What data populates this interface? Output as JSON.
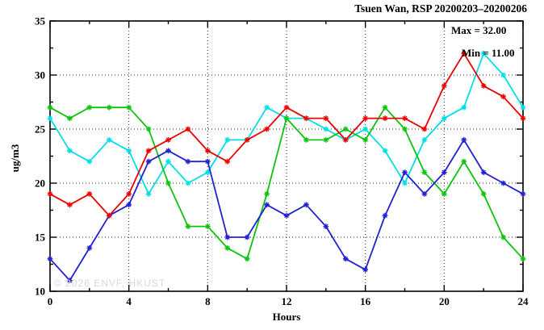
{
  "title": "Tsuen Wan, RSP 20200203–20200206",
  "annotations": {
    "max_label": "Max = 32.00",
    "min_label": "Min = 11.00"
  },
  "watermark": "© 2026 ENVF, HKUST",
  "chart_data": {
    "type": "line",
    "title": "Tsuen Wan, RSP 20200203–20200206",
    "xlabel": "Hours",
    "ylabel": "ug/m3",
    "xlim": [
      0,
      24
    ],
    "ylim": [
      10,
      35
    ],
    "x_major_ticks": [
      0,
      4,
      8,
      12,
      16,
      20,
      24
    ],
    "x_minor_step": 2,
    "y_major_ticks": [
      10,
      15,
      20,
      25,
      30,
      35
    ],
    "y_minor_step": 2.5,
    "grid_x": [
      4,
      8,
      12,
      16,
      20
    ],
    "grid_y": [
      15,
      20,
      25,
      30
    ],
    "grid_on": true,
    "legend_position": "none",
    "max_value": 32.0,
    "min_value": 11.0,
    "x": [
      0,
      1,
      2,
      3,
      4,
      5,
      6,
      7,
      8,
      9,
      10,
      11,
      12,
      13,
      14,
      15,
      16,
      17,
      18,
      19,
      20,
      21,
      22,
      23,
      24
    ],
    "series": [
      {
        "name": "cyan-line",
        "color": "#00dfe6",
        "values": [
          26,
          23,
          22,
          24,
          23,
          19,
          22,
          20,
          21,
          24,
          24,
          27,
          26,
          26,
          25,
          24,
          25,
          23,
          20,
          24,
          26,
          27,
          32,
          30,
          27
        ]
      },
      {
        "name": "green-line",
        "color": "#0cc40c",
        "values": [
          27,
          26,
          27,
          27,
          27,
          25,
          20,
          16,
          16,
          14,
          13,
          19,
          26,
          24,
          24,
          25,
          24,
          27,
          25,
          21,
          19,
          22,
          19,
          15,
          13
        ]
      },
      {
        "name": "blue-line",
        "color": "#2222d2",
        "values": [
          13,
          11,
          14,
          17,
          18,
          22,
          23,
          22,
          22,
          15,
          15,
          18,
          17,
          18,
          16,
          13,
          12,
          17,
          21,
          19,
          21,
          24,
          21,
          20,
          19
        ]
      },
      {
        "name": "red-line",
        "color": "#ee0000",
        "values": [
          19,
          18,
          19,
          17,
          19,
          23,
          24,
          25,
          23,
          22,
          24,
          25,
          27,
          26,
          26,
          24,
          26,
          26,
          26,
          25,
          29,
          32,
          29,
          28,
          26
        ]
      }
    ]
  }
}
